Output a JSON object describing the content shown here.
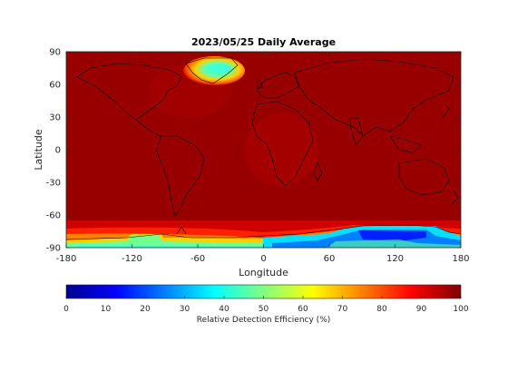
{
  "title": "2023/05/25 Daily Average",
  "map": {
    "xlabel": "Longitude",
    "ylabel": "Latitude",
    "xlim": [
      -180,
      180
    ],
    "ylim": [
      -90,
      90
    ],
    "xticks": [
      -180,
      -120,
      -60,
      0,
      60,
      120,
      180
    ],
    "yticks": [
      90,
      60,
      30,
      0,
      -30,
      -60,
      -90
    ],
    "background_value": 95,
    "colormap": "jet"
  },
  "colorbar": {
    "label": "Relative Detection Efficiency (%)",
    "min": 0,
    "max": 100,
    "ticks": [
      0,
      10,
      20,
      30,
      40,
      50,
      60,
      70,
      80,
      90,
      100
    ],
    "colors": [
      "#00008f",
      "#0000ff",
      "#0080ff",
      "#00ffff",
      "#80ff80",
      "#ffff00",
      "#ff8000",
      "#ff0000",
      "#800000"
    ]
  },
  "chart_data": {
    "type": "heatmap",
    "title": "2023/05/25 Daily Average",
    "xlabel": "Longitude",
    "ylabel": "Latitude",
    "xlim": [
      -180,
      180
    ],
    "ylim": [
      -90,
      90
    ],
    "value_label": "Relative Detection Efficiency (%)",
    "value_range": [
      0,
      100
    ],
    "regions": [
      {
        "name": "global background",
        "value": 95
      },
      {
        "name": "Greenland",
        "value": 35
      },
      {
        "name": "East Antarctica",
        "value": 15
      },
      {
        "name": "West Antarctica (Marie Byrd Land)",
        "value": 45
      },
      {
        "name": "Antarctic coastal fringe",
        "value": 70
      },
      {
        "name": "Southern Ocean margin",
        "value": 85
      }
    ]
  }
}
